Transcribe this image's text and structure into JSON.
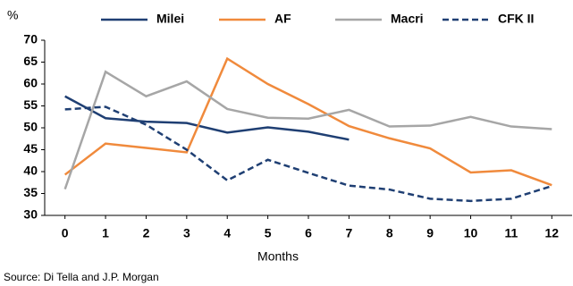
{
  "chart_data": {
    "type": "line",
    "y_label": "%",
    "x_label": "Months",
    "source": "Source: Di Tella and J.P. Morgan",
    "x": [
      0,
      1,
      2,
      3,
      4,
      5,
      6,
      7,
      8,
      9,
      10,
      11,
      12
    ],
    "xlim": [
      -0.5,
      12.5
    ],
    "xticks": [
      0,
      1,
      2,
      3,
      4,
      5,
      6,
      7,
      8,
      9,
      10,
      11,
      12
    ],
    "ylim": [
      30,
      70
    ],
    "yticks": [
      30,
      35,
      40,
      45,
      50,
      55,
      60,
      65,
      70
    ],
    "grid": false,
    "legend": "top",
    "series": [
      {
        "name": "Milei",
        "color": "#1f3f73",
        "dashed": false,
        "values": [
          57.2,
          52.2,
          51.4,
          51.1,
          48.9,
          50.1,
          49.1,
          47.3,
          null,
          null,
          null,
          null,
          null
        ]
      },
      {
        "name": "AF",
        "color": "#f08a3c",
        "dashed": false,
        "values": [
          39.3,
          46.4,
          45.4,
          44.4,
          65.8,
          60.0,
          55.4,
          50.4,
          47.6,
          45.3,
          39.8,
          40.3,
          36.9
        ]
      },
      {
        "name": "Macri",
        "color": "#a6a6a6",
        "dashed": false,
        "values": [
          36.0,
          62.8,
          57.2,
          60.6,
          54.3,
          52.3,
          52.1,
          54.1,
          50.3,
          50.5,
          52.5,
          50.3,
          49.7
        ]
      },
      {
        "name": "CFK II",
        "color": "#1f3f73",
        "dashed": true,
        "values": [
          54.2,
          54.8,
          50.7,
          45.0,
          38.0,
          42.7,
          39.7,
          36.8,
          35.9,
          33.8,
          33.3,
          33.8,
          36.7
        ]
      }
    ]
  }
}
